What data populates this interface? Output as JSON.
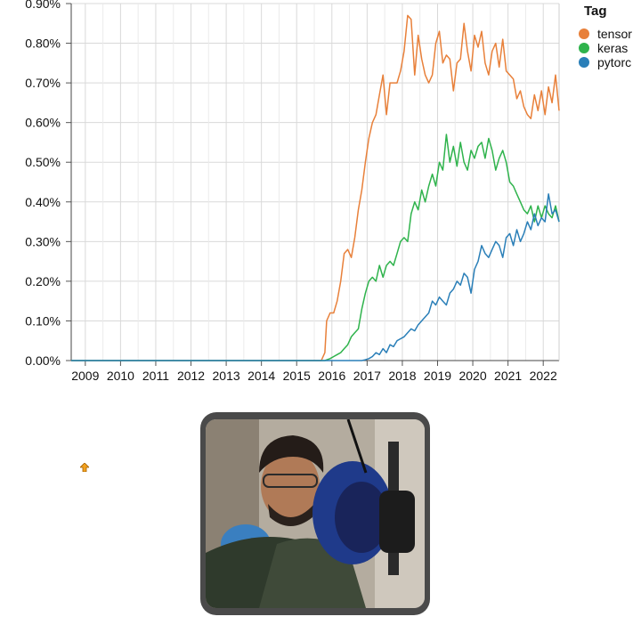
{
  "chart_data": {
    "type": "line",
    "y_tick_labels": [
      "0.00%",
      "0.10%",
      "0.20%",
      "0.30%",
      "0.40%",
      "0.50%",
      "0.60%",
      "0.70%",
      "0.80%",
      "0.90%"
    ],
    "x_tick_labels": [
      "2009",
      "2010",
      "2011",
      "2012",
      "2013",
      "2014",
      "2015",
      "2016",
      "2017",
      "2018",
      "2019",
      "2020",
      "2021",
      "2022"
    ],
    "ylim": [
      0,
      0.9
    ],
    "xlim": [
      2008.6,
      2022.45
    ],
    "grid": true,
    "legend": {
      "title": "Tag",
      "placement": "right"
    },
    "series": [
      {
        "name": "tensor",
        "color": "#e8803a",
        "points": [
          [
            2008.6,
            0
          ],
          [
            2015.7,
            0
          ],
          [
            2015.8,
            0.02
          ],
          [
            2015.85,
            0.1
          ],
          [
            2015.95,
            0.12
          ],
          [
            2016.05,
            0.12
          ],
          [
            2016.15,
            0.15
          ],
          [
            2016.25,
            0.2
          ],
          [
            2016.35,
            0.27
          ],
          [
            2016.45,
            0.28
          ],
          [
            2016.55,
            0.26
          ],
          [
            2016.65,
            0.31
          ],
          [
            2016.75,
            0.38
          ],
          [
            2016.85,
            0.43
          ],
          [
            2016.95,
            0.5
          ],
          [
            2017.05,
            0.56
          ],
          [
            2017.15,
            0.6
          ],
          [
            2017.25,
            0.62
          ],
          [
            2017.35,
            0.67
          ],
          [
            2017.45,
            0.72
          ],
          [
            2017.55,
            0.62
          ],
          [
            2017.65,
            0.7
          ],
          [
            2017.75,
            0.7
          ],
          [
            2017.85,
            0.7
          ],
          [
            2017.95,
            0.73
          ],
          [
            2018.05,
            0.78
          ],
          [
            2018.15,
            0.87
          ],
          [
            2018.25,
            0.86
          ],
          [
            2018.35,
            0.72
          ],
          [
            2018.45,
            0.82
          ],
          [
            2018.55,
            0.76
          ],
          [
            2018.65,
            0.72
          ],
          [
            2018.75,
            0.7
          ],
          [
            2018.85,
            0.72
          ],
          [
            2018.95,
            0.8
          ],
          [
            2019.05,
            0.83
          ],
          [
            2019.15,
            0.75
          ],
          [
            2019.25,
            0.77
          ],
          [
            2019.35,
            0.76
          ],
          [
            2019.45,
            0.68
          ],
          [
            2019.55,
            0.75
          ],
          [
            2019.65,
            0.76
          ],
          [
            2019.75,
            0.85
          ],
          [
            2019.85,
            0.78
          ],
          [
            2019.95,
            0.73
          ],
          [
            2020.05,
            0.82
          ],
          [
            2020.15,
            0.79
          ],
          [
            2020.25,
            0.83
          ],
          [
            2020.35,
            0.75
          ],
          [
            2020.45,
            0.72
          ],
          [
            2020.55,
            0.78
          ],
          [
            2020.65,
            0.8
          ],
          [
            2020.75,
            0.74
          ],
          [
            2020.85,
            0.81
          ],
          [
            2020.95,
            0.73
          ],
          [
            2021.05,
            0.72
          ],
          [
            2021.15,
            0.71
          ],
          [
            2021.25,
            0.66
          ],
          [
            2021.35,
            0.68
          ],
          [
            2021.45,
            0.64
          ],
          [
            2021.55,
            0.62
          ],
          [
            2021.65,
            0.61
          ],
          [
            2021.75,
            0.67
          ],
          [
            2021.85,
            0.63
          ],
          [
            2021.95,
            0.68
          ],
          [
            2022.05,
            0.62
          ],
          [
            2022.15,
            0.69
          ],
          [
            2022.25,
            0.65
          ],
          [
            2022.35,
            0.72
          ],
          [
            2022.45,
            0.63
          ]
        ]
      },
      {
        "name": "keras",
        "color": "#2fb34c",
        "points": [
          [
            2008.6,
            0
          ],
          [
            2015.8,
            0
          ],
          [
            2015.95,
            0.005
          ],
          [
            2016.05,
            0.01
          ],
          [
            2016.15,
            0.015
          ],
          [
            2016.25,
            0.02
          ],
          [
            2016.35,
            0.03
          ],
          [
            2016.45,
            0.04
          ],
          [
            2016.55,
            0.06
          ],
          [
            2016.65,
            0.07
          ],
          [
            2016.75,
            0.08
          ],
          [
            2016.85,
            0.13
          ],
          [
            2016.95,
            0.17
          ],
          [
            2017.05,
            0.2
          ],
          [
            2017.15,
            0.21
          ],
          [
            2017.25,
            0.2
          ],
          [
            2017.35,
            0.24
          ],
          [
            2017.45,
            0.21
          ],
          [
            2017.55,
            0.24
          ],
          [
            2017.65,
            0.25
          ],
          [
            2017.75,
            0.24
          ],
          [
            2017.85,
            0.27
          ],
          [
            2017.95,
            0.3
          ],
          [
            2018.05,
            0.31
          ],
          [
            2018.15,
            0.3
          ],
          [
            2018.25,
            0.37
          ],
          [
            2018.35,
            0.4
          ],
          [
            2018.45,
            0.38
          ],
          [
            2018.55,
            0.43
          ],
          [
            2018.65,
            0.4
          ],
          [
            2018.75,
            0.44
          ],
          [
            2018.85,
            0.47
          ],
          [
            2018.95,
            0.44
          ],
          [
            2019.05,
            0.5
          ],
          [
            2019.15,
            0.48
          ],
          [
            2019.25,
            0.57
          ],
          [
            2019.35,
            0.5
          ],
          [
            2019.45,
            0.54
          ],
          [
            2019.55,
            0.49
          ],
          [
            2019.65,
            0.55
          ],
          [
            2019.75,
            0.5
          ],
          [
            2019.85,
            0.48
          ],
          [
            2019.95,
            0.53
          ],
          [
            2020.05,
            0.51
          ],
          [
            2020.15,
            0.54
          ],
          [
            2020.25,
            0.55
          ],
          [
            2020.35,
            0.51
          ],
          [
            2020.45,
            0.56
          ],
          [
            2020.55,
            0.53
          ],
          [
            2020.65,
            0.48
          ],
          [
            2020.75,
            0.51
          ],
          [
            2020.85,
            0.53
          ],
          [
            2020.95,
            0.5
          ],
          [
            2021.05,
            0.45
          ],
          [
            2021.15,
            0.44
          ],
          [
            2021.25,
            0.42
          ],
          [
            2021.35,
            0.4
          ],
          [
            2021.45,
            0.38
          ],
          [
            2021.55,
            0.37
          ],
          [
            2021.65,
            0.39
          ],
          [
            2021.75,
            0.35
          ],
          [
            2021.85,
            0.39
          ],
          [
            2021.95,
            0.36
          ],
          [
            2022.05,
            0.39
          ],
          [
            2022.15,
            0.37
          ],
          [
            2022.25,
            0.36
          ],
          [
            2022.35,
            0.39
          ],
          [
            2022.45,
            0.35
          ]
        ]
      },
      {
        "name": "pytorc",
        "color": "#2a7fb8",
        "points": [
          [
            2008.6,
            0
          ],
          [
            2016.85,
            0
          ],
          [
            2016.95,
            0.002
          ],
          [
            2017.05,
            0.005
          ],
          [
            2017.15,
            0.01
          ],
          [
            2017.25,
            0.02
          ],
          [
            2017.35,
            0.015
          ],
          [
            2017.45,
            0.03
          ],
          [
            2017.55,
            0.02
          ],
          [
            2017.65,
            0.04
          ],
          [
            2017.75,
            0.035
          ],
          [
            2017.85,
            0.05
          ],
          [
            2017.95,
            0.055
          ],
          [
            2018.05,
            0.06
          ],
          [
            2018.15,
            0.07
          ],
          [
            2018.25,
            0.08
          ],
          [
            2018.35,
            0.075
          ],
          [
            2018.45,
            0.09
          ],
          [
            2018.55,
            0.1
          ],
          [
            2018.65,
            0.11
          ],
          [
            2018.75,
            0.12
          ],
          [
            2018.85,
            0.15
          ],
          [
            2018.95,
            0.14
          ],
          [
            2019.05,
            0.16
          ],
          [
            2019.15,
            0.15
          ],
          [
            2019.25,
            0.14
          ],
          [
            2019.35,
            0.17
          ],
          [
            2019.45,
            0.18
          ],
          [
            2019.55,
            0.2
          ],
          [
            2019.65,
            0.19
          ],
          [
            2019.75,
            0.22
          ],
          [
            2019.85,
            0.21
          ],
          [
            2019.95,
            0.17
          ],
          [
            2020.05,
            0.23
          ],
          [
            2020.15,
            0.25
          ],
          [
            2020.25,
            0.29
          ],
          [
            2020.35,
            0.27
          ],
          [
            2020.45,
            0.26
          ],
          [
            2020.55,
            0.28
          ],
          [
            2020.65,
            0.3
          ],
          [
            2020.75,
            0.29
          ],
          [
            2020.85,
            0.26
          ],
          [
            2020.95,
            0.31
          ],
          [
            2021.05,
            0.32
          ],
          [
            2021.15,
            0.29
          ],
          [
            2021.25,
            0.33
          ],
          [
            2021.35,
            0.3
          ],
          [
            2021.45,
            0.32
          ],
          [
            2021.55,
            0.35
          ],
          [
            2021.65,
            0.33
          ],
          [
            2021.75,
            0.37
          ],
          [
            2021.85,
            0.34
          ],
          [
            2021.95,
            0.36
          ],
          [
            2022.05,
            0.35
          ],
          [
            2022.15,
            0.42
          ],
          [
            2022.25,
            0.37
          ],
          [
            2022.35,
            0.38
          ],
          [
            2022.45,
            0.35
          ]
        ]
      }
    ]
  },
  "icons": {
    "cursor": "cursor-arrow-icon"
  }
}
